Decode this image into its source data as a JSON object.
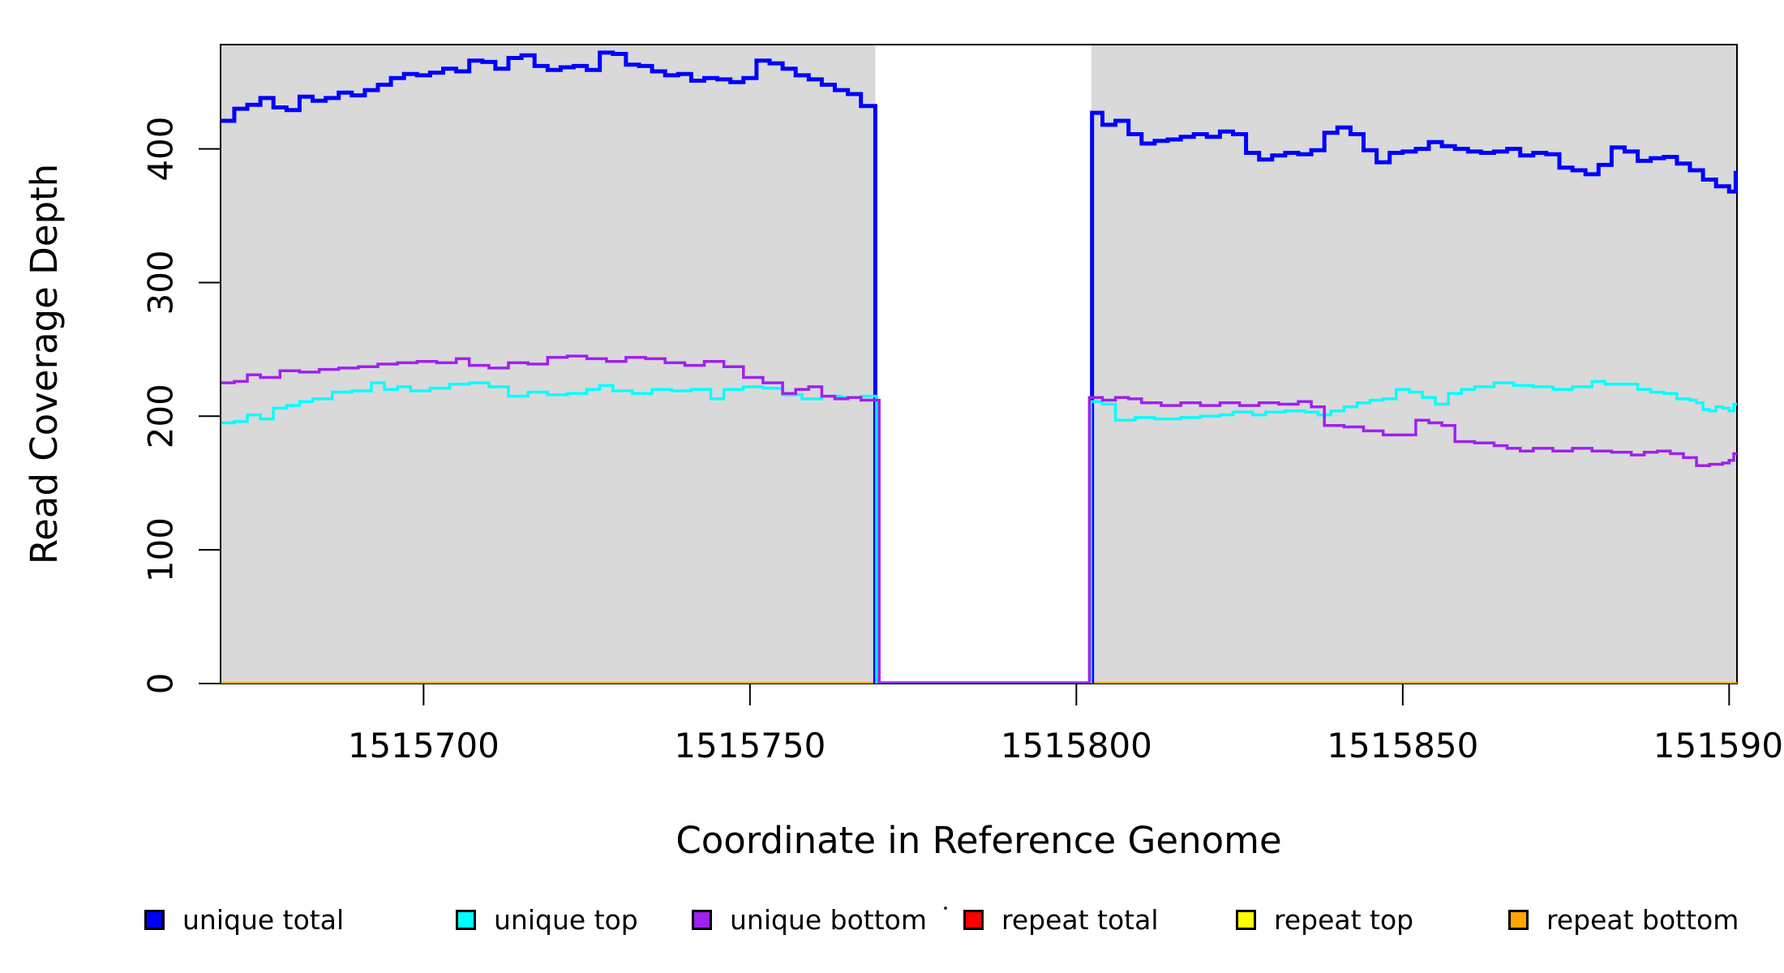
{
  "chart_data": {
    "type": "line",
    "subtype": "step",
    "title": "",
    "xlabel": "Coordinate in Reference Genome",
    "ylabel": "Read Coverage Depth",
    "grid": false,
    "x_range": [
      1515668.9,
      1515901.2
    ],
    "y_range": [
      0,
      478
    ],
    "x_ticks": [
      1515700,
      1515750,
      1515800,
      1515850,
      1515900
    ],
    "x_tick_labels": [
      "1515700",
      "1515750",
      "1515800",
      "1515850",
      "1515900"
    ],
    "y_ticks": [
      0,
      100,
      200,
      300,
      400
    ],
    "y_tick_labels": [
      "0",
      "100",
      "200",
      "300",
      "400"
    ],
    "plot_background_color": "#ffffff",
    "shaded_region_color": "#d9d9d9",
    "shaded_regions": [
      [
        1515668.9,
        1515769.2
      ],
      [
        1515802.3,
        1515901.2
      ]
    ],
    "coverage_gap": {
      "start": 1515769.2,
      "end": 1515802.3,
      "note": "all series drop to 0"
    },
    "z_order": [
      "repeat_total",
      "repeat_top",
      "repeat_bottom",
      "unique_total",
      "unique_top",
      "unique_bottom"
    ],
    "legend": {
      "position": "bottom",
      "entries": [
        {
          "id": "unique_total",
          "label": "unique total",
          "color": "#0000ff"
        },
        {
          "id": "unique_top",
          "label": "unique top",
          "color": "#00ffff"
        },
        {
          "id": "unique_bottom",
          "label": "unique bottom",
          "color": "#a020f0"
        },
        {
          "id": "repeat_total",
          "label": "repeat total",
          "color": "#ff0000"
        },
        {
          "id": "repeat_top",
          "label": "repeat top",
          "color": "#ffff00"
        },
        {
          "id": "repeat_bottom",
          "label": "repeat bottom",
          "color": "#ffa500"
        }
      ]
    },
    "series": [
      {
        "id": "unique_total",
        "name": "unique total",
        "color": "#0000ff",
        "width": 5,
        "points": [
          [
            1515669,
            421
          ],
          [
            1515671,
            430
          ],
          [
            1515673,
            433
          ],
          [
            1515675,
            438
          ],
          [
            1515677,
            431
          ],
          [
            1515679,
            429
          ],
          [
            1515681,
            439
          ],
          [
            1515683,
            436
          ],
          [
            1515685,
            438
          ],
          [
            1515687,
            442
          ],
          [
            1515689,
            440
          ],
          [
            1515691,
            444
          ],
          [
            1515693,
            448
          ],
          [
            1515695,
            453
          ],
          [
            1515697,
            456
          ],
          [
            1515699,
            455
          ],
          [
            1515701,
            457
          ],
          [
            1515703,
            460
          ],
          [
            1515705,
            458
          ],
          [
            1515707,
            466
          ],
          [
            1515709,
            465
          ],
          [
            1515711,
            460
          ],
          [
            1515713,
            468
          ],
          [
            1515715,
            470
          ],
          [
            1515717,
            462
          ],
          [
            1515719,
            459
          ],
          [
            1515721,
            461
          ],
          [
            1515723,
            462
          ],
          [
            1515725,
            459
          ],
          [
            1515727,
            472
          ],
          [
            1515729,
            471
          ],
          [
            1515731,
            463
          ],
          [
            1515733,
            462
          ],
          [
            1515735,
            458
          ],
          [
            1515737,
            455
          ],
          [
            1515739,
            456
          ],
          [
            1515741,
            451
          ],
          [
            1515743,
            453
          ],
          [
            1515745,
            452
          ],
          [
            1515747,
            450
          ],
          [
            1515749,
            453
          ],
          [
            1515751,
            466
          ],
          [
            1515753,
            464
          ],
          [
            1515755,
            460
          ],
          [
            1515757,
            455
          ],
          [
            1515759,
            452
          ],
          [
            1515761,
            448
          ],
          [
            1515763,
            444
          ],
          [
            1515765,
            441
          ],
          [
            1515767,
            432
          ],
          [
            1515769.2,
            0
          ],
          [
            1515802.4,
            427
          ],
          [
            1515804,
            418
          ],
          [
            1515806,
            421
          ],
          [
            1515808,
            411
          ],
          [
            1515810,
            404
          ],
          [
            1515812,
            406
          ],
          [
            1515814,
            407
          ],
          [
            1515816,
            409
          ],
          [
            1515818,
            411
          ],
          [
            1515820,
            409
          ],
          [
            1515822,
            413
          ],
          [
            1515824,
            411
          ],
          [
            1515826,
            397
          ],
          [
            1515828,
            392
          ],
          [
            1515830,
            395
          ],
          [
            1515832,
            397
          ],
          [
            1515834,
            396
          ],
          [
            1515836,
            399
          ],
          [
            1515838,
            412
          ],
          [
            1515840,
            416
          ],
          [
            1515842,
            411
          ],
          [
            1515844,
            399
          ],
          [
            1515846,
            390
          ],
          [
            1515848,
            397
          ],
          [
            1515850,
            398
          ],
          [
            1515852,
            400
          ],
          [
            1515854,
            405
          ],
          [
            1515856,
            402
          ],
          [
            1515858,
            400
          ],
          [
            1515860,
            398
          ],
          [
            1515862,
            397
          ],
          [
            1515864,
            398
          ],
          [
            1515866,
            400
          ],
          [
            1515868,
            395
          ],
          [
            1515870,
            397
          ],
          [
            1515872,
            396
          ],
          [
            1515874,
            386
          ],
          [
            1515876,
            384
          ],
          [
            1515878,
            381
          ],
          [
            1515880,
            388
          ],
          [
            1515882,
            401
          ],
          [
            1515884,
            398
          ],
          [
            1515886,
            391
          ],
          [
            1515888,
            393
          ],
          [
            1515890,
            394
          ],
          [
            1515892,
            389
          ],
          [
            1515894,
            384
          ],
          [
            1515896,
            377
          ],
          [
            1515898,
            372
          ],
          [
            1515900,
            368
          ],
          [
            1515901,
            382
          ]
        ]
      },
      {
        "id": "unique_top",
        "name": "unique top",
        "color": "#00ffff",
        "width": 3.5,
        "points": [
          [
            1515669,
            195
          ],
          [
            1515671,
            196
          ],
          [
            1515673,
            201
          ],
          [
            1515675,
            198
          ],
          [
            1515677,
            206
          ],
          [
            1515679,
            208
          ],
          [
            1515681,
            211
          ],
          [
            1515683,
            213
          ],
          [
            1515686,
            218
          ],
          [
            1515689,
            219
          ],
          [
            1515692,
            225
          ],
          [
            1515694,
            220
          ],
          [
            1515696,
            222
          ],
          [
            1515698,
            219
          ],
          [
            1515701,
            221
          ],
          [
            1515704,
            224
          ],
          [
            1515707,
            225
          ],
          [
            1515710,
            222
          ],
          [
            1515713,
            215
          ],
          [
            1515716,
            218
          ],
          [
            1515719,
            216
          ],
          [
            1515722,
            217
          ],
          [
            1515725,
            220
          ],
          [
            1515727,
            223
          ],
          [
            1515729,
            219
          ],
          [
            1515732,
            217
          ],
          [
            1515735,
            220
          ],
          [
            1515738,
            219
          ],
          [
            1515741,
            220
          ],
          [
            1515744,
            213
          ],
          [
            1515746,
            220
          ],
          [
            1515749,
            222
          ],
          [
            1515752,
            221
          ],
          [
            1515755,
            216
          ],
          [
            1515758,
            213
          ],
          [
            1515761,
            215
          ],
          [
            1515764,
            214
          ],
          [
            1515767,
            215
          ],
          [
            1515769.4,
            0
          ],
          [
            1515802.2,
            211
          ],
          [
            1515804,
            209
          ],
          [
            1515806,
            197
          ],
          [
            1515809,
            199
          ],
          [
            1515812,
            198
          ],
          [
            1515816,
            199
          ],
          [
            1515819,
            200
          ],
          [
            1515822,
            201
          ],
          [
            1515824,
            203
          ],
          [
            1515827,
            201
          ],
          [
            1515829,
            203
          ],
          [
            1515832,
            204
          ],
          [
            1515835,
            203
          ],
          [
            1515837,
            201
          ],
          [
            1515839,
            204
          ],
          [
            1515841,
            207
          ],
          [
            1515843,
            210
          ],
          [
            1515845,
            212
          ],
          [
            1515847,
            213
          ],
          [
            1515849,
            220
          ],
          [
            1515851,
            218
          ],
          [
            1515853,
            214
          ],
          [
            1515855,
            209
          ],
          [
            1515857,
            217
          ],
          [
            1515859,
            220
          ],
          [
            1515861,
            222
          ],
          [
            1515864,
            225
          ],
          [
            1515867,
            223
          ],
          [
            1515870,
            222
          ],
          [
            1515873,
            220
          ],
          [
            1515876,
            222
          ],
          [
            1515879,
            226
          ],
          [
            1515881,
            224
          ],
          [
            1515884,
            224
          ],
          [
            1515886,
            220
          ],
          [
            1515888,
            218
          ],
          [
            1515890,
            217
          ],
          [
            1515892,
            213
          ],
          [
            1515894,
            212
          ],
          [
            1515895,
            210
          ],
          [
            1515896,
            205
          ],
          [
            1515897,
            204
          ],
          [
            1515898,
            207
          ],
          [
            1515899,
            206
          ],
          [
            1515900,
            204
          ],
          [
            1515900.7,
            209
          ]
        ]
      },
      {
        "id": "unique_bottom",
        "name": "unique bottom",
        "color": "#a020f0",
        "width": 3.5,
        "points": [
          [
            1515669,
            225
          ],
          [
            1515671,
            226
          ],
          [
            1515673,
            231
          ],
          [
            1515675,
            229
          ],
          [
            1515678,
            234
          ],
          [
            1515681,
            233
          ],
          [
            1515684,
            235
          ],
          [
            1515687,
            236
          ],
          [
            1515690,
            237
          ],
          [
            1515693,
            239
          ],
          [
            1515696,
            240
          ],
          [
            1515699,
            241
          ],
          [
            1515702,
            240
          ],
          [
            1515705,
            243
          ],
          [
            1515707,
            238
          ],
          [
            1515710,
            236
          ],
          [
            1515713,
            240
          ],
          [
            1515716,
            239
          ],
          [
            1515719,
            244
          ],
          [
            1515722,
            245
          ],
          [
            1515725,
            243
          ],
          [
            1515728,
            241
          ],
          [
            1515731,
            244
          ],
          [
            1515734,
            243
          ],
          [
            1515737,
            240
          ],
          [
            1515740,
            238
          ],
          [
            1515743,
            241
          ],
          [
            1515746,
            237
          ],
          [
            1515749,
            229
          ],
          [
            1515752,
            225
          ],
          [
            1515755,
            217
          ],
          [
            1515757,
            220
          ],
          [
            1515759,
            222
          ],
          [
            1515761,
            215
          ],
          [
            1515763,
            213
          ],
          [
            1515765,
            214
          ],
          [
            1515767,
            212
          ],
          [
            1515769.8,
            0
          ],
          [
            1515802,
            214
          ],
          [
            1515804,
            212
          ],
          [
            1515806,
            214
          ],
          [
            1515808,
            213
          ],
          [
            1515810,
            210
          ],
          [
            1515813,
            208
          ],
          [
            1515816,
            210
          ],
          [
            1515819,
            208
          ],
          [
            1515822,
            210
          ],
          [
            1515825,
            208
          ],
          [
            1515828,
            210
          ],
          [
            1515831,
            209
          ],
          [
            1515834,
            211
          ],
          [
            1515836,
            207
          ],
          [
            1515838,
            193
          ],
          [
            1515841,
            192
          ],
          [
            1515844,
            189
          ],
          [
            1515847,
            186
          ],
          [
            1515850,
            186
          ],
          [
            1515852,
            197
          ],
          [
            1515854,
            195
          ],
          [
            1515856,
            193
          ],
          [
            1515858,
            181
          ],
          [
            1515861,
            180
          ],
          [
            1515864,
            178
          ],
          [
            1515866,
            176
          ],
          [
            1515868,
            174
          ],
          [
            1515870,
            176
          ],
          [
            1515873,
            174
          ],
          [
            1515876,
            176
          ],
          [
            1515879,
            174
          ],
          [
            1515882,
            173
          ],
          [
            1515885,
            171
          ],
          [
            1515887,
            173
          ],
          [
            1515889,
            174
          ],
          [
            1515891,
            172
          ],
          [
            1515893,
            169
          ],
          [
            1515895,
            163
          ],
          [
            1515897,
            164
          ],
          [
            1515899,
            165
          ],
          [
            1515900,
            167
          ],
          [
            1515900.7,
            172
          ]
        ]
      },
      {
        "id": "repeat_total",
        "name": "repeat total",
        "color": "#ff0000",
        "width": 3.5,
        "points": [
          [
            1515669,
            0
          ]
        ]
      },
      {
        "id": "repeat_top",
        "name": "repeat top",
        "color": "#ffff00",
        "width": 3.5,
        "points": [
          [
            1515669,
            0
          ]
        ]
      },
      {
        "id": "repeat_bottom",
        "name": "repeat bottom",
        "color": "#ffa500",
        "width": 3.5,
        "points": [
          [
            1515669,
            0
          ]
        ]
      }
    ]
  }
}
